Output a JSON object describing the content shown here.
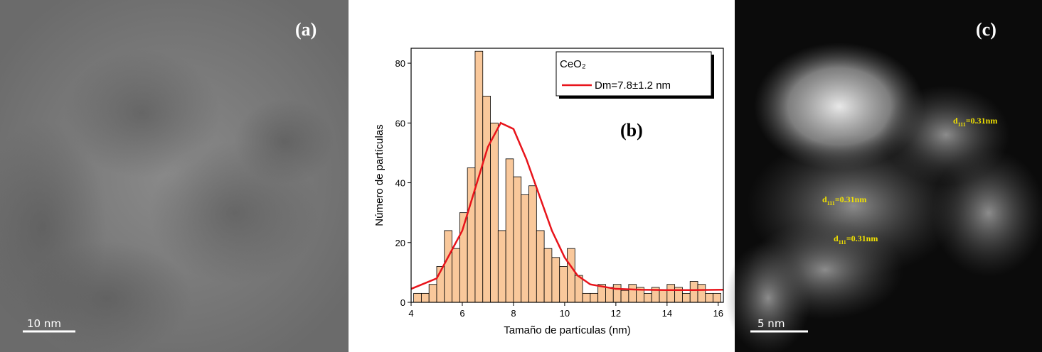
{
  "panels": {
    "a": {
      "label": "(a)",
      "scale_bar": "10 nm"
    },
    "c": {
      "label": "(c)",
      "scale_bar": "5 nm",
      "annotations": [
        {
          "symbol": "d",
          "subscript": "111",
          "text": "=0.31nm"
        },
        {
          "symbol": "d",
          "subscript": "111",
          "text": "=0.31nm"
        },
        {
          "symbol": "d",
          "subscript": "111",
          "text": "=0.31nm"
        }
      ]
    }
  },
  "chart_data": {
    "type": "histogram",
    "annotation": "(b)",
    "x_label": "Tamaño de partículas (nm)",
    "y_label": "Número de partículas",
    "legend_title": "CeO₂",
    "legend_position": "upper right",
    "bins": [
      4.1,
      4.4,
      4.7,
      5.0,
      5.3,
      5.6,
      5.9,
      6.2,
      6.5,
      6.8,
      7.1,
      7.4,
      7.7,
      8.0,
      8.3,
      8.6,
      8.9,
      9.2,
      9.5,
      9.8,
      10.1,
      10.4,
      10.7,
      11.0,
      11.3,
      11.6,
      11.9,
      12.2,
      12.5,
      12.8,
      13.1,
      13.4,
      13.7,
      14.0,
      14.3,
      14.6,
      14.9,
      15.2,
      15.5,
      15.8,
      16.1
    ],
    "values": [
      3,
      3,
      6,
      12,
      24,
      18,
      30,
      45,
      84,
      69,
      60,
      24,
      48,
      42,
      36,
      39,
      24,
      18,
      15,
      12,
      18,
      9,
      3,
      3,
      6,
      5,
      6,
      4,
      6,
      5,
      3,
      5,
      4,
      6,
      5,
      3,
      7,
      6,
      3,
      3
    ],
    "color": "#f9c89b",
    "series": [
      {
        "name": "Dm=7.8±1.2 nm",
        "color": "#e8141b",
        "x": [
          4,
          5,
          6,
          6.5,
          7,
          7.5,
          8,
          8.5,
          9,
          9.5,
          10,
          10.5,
          11,
          12,
          13,
          14,
          15,
          16.2
        ],
        "values": [
          4.5,
          8,
          24,
          38,
          52,
          60,
          58,
          48,
          36,
          24,
          15,
          9,
          6,
          4.5,
          4.2,
          4.1,
          4.1,
          4.2
        ]
      }
    ],
    "xlim": [
      4,
      16.2
    ],
    "ylim": [
      0,
      85
    ],
    "xticks": [
      4,
      6,
      8,
      10,
      12,
      14,
      16
    ],
    "yticks": [
      0,
      20,
      40,
      60,
      80
    ]
  }
}
